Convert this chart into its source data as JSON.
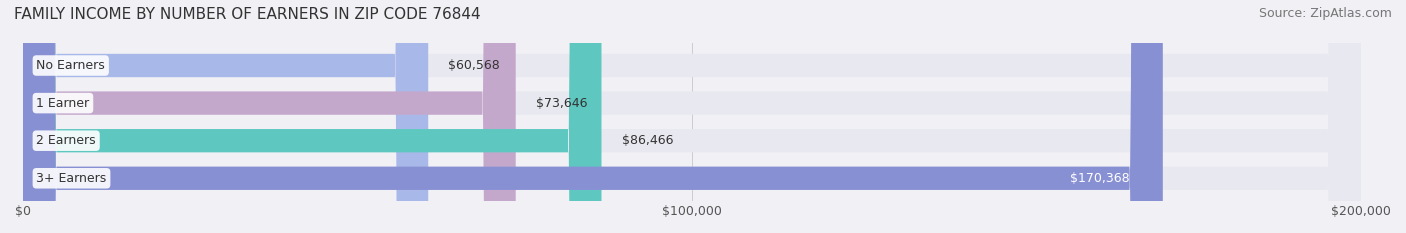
{
  "title": "FAMILY INCOME BY NUMBER OF EARNERS IN ZIP CODE 76844",
  "source": "Source: ZipAtlas.com",
  "categories": [
    "No Earners",
    "1 Earner",
    "2 Earners",
    "3+ Earners"
  ],
  "values": [
    60568,
    73646,
    86466,
    170368
  ],
  "bar_colors": [
    "#a8b8e8",
    "#c4a8cc",
    "#5ec8c0",
    "#8890d4"
  ],
  "bar_edge_colors": [
    "#a8b8e8",
    "#c4a8cc",
    "#5ec8c0",
    "#8890d4"
  ],
  "label_colors": [
    "#333333",
    "#333333",
    "#333333",
    "#ffffff"
  ],
  "xlim": [
    0,
    200000
  ],
  "xtick_values": [
    0,
    100000,
    200000
  ],
  "xtick_labels": [
    "$0",
    "$100,000",
    "$200,000"
  ],
  "background_color": "#f0f0f5",
  "bar_bg_color": "#e8e8f0",
  "title_fontsize": 11,
  "source_fontsize": 9,
  "label_fontsize": 9,
  "tick_fontsize": 9
}
